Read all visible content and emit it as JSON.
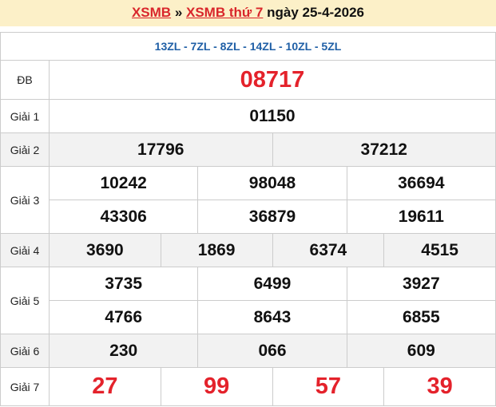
{
  "header": {
    "link1": "XSMB",
    "sep": " » ",
    "link2": "XSMB thứ 7",
    "date": " ngày 25-4-2026"
  },
  "codes": "13ZL - 7ZL - 8ZL - 14ZL - 10ZL - 5ZL",
  "prizes": [
    {
      "label": "ĐB",
      "lines": [
        [
          "08717"
        ]
      ]
    },
    {
      "label": "Giải 1",
      "lines": [
        [
          "01150"
        ]
      ]
    },
    {
      "label": "Giải 2",
      "lines": [
        [
          "17796",
          "37212"
        ]
      ]
    },
    {
      "label": "Giải 3",
      "lines": [
        [
          "10242",
          "98048",
          "36694"
        ],
        [
          "43306",
          "36879",
          "19611"
        ]
      ]
    },
    {
      "label": "Giải 4",
      "lines": [
        [
          "3690",
          "1869",
          "6374",
          "4515"
        ]
      ]
    },
    {
      "label": "Giải 5",
      "lines": [
        [
          "3735",
          "6499",
          "3927"
        ],
        [
          "4766",
          "8643",
          "6855"
        ]
      ]
    },
    {
      "label": "Giải 6",
      "lines": [
        [
          "230",
          "066",
          "609"
        ]
      ]
    },
    {
      "label": "Giải 7",
      "lines": [
        [
          "27",
          "99",
          "57",
          "39"
        ]
      ]
    }
  ],
  "colors": {
    "red": "#e4222b",
    "blue": "#1f5fa6",
    "header_bg": "#fcf0c8"
  }
}
